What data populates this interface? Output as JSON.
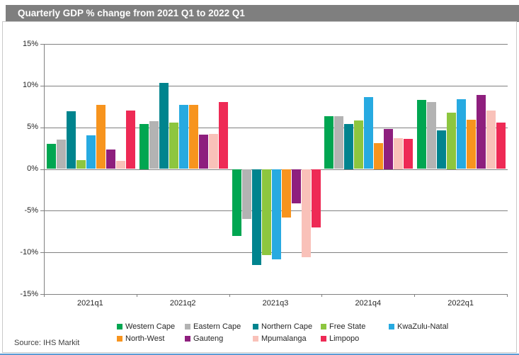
{
  "title": "Quarterly GDP % change from 2021 Q1 to 2022 Q1",
  "source_note": "Source: IHS Markit",
  "colors": {
    "title_bar_bg": "#7f7f7f",
    "title_text": "#ffffff",
    "grid_line": "#808080",
    "axis_line": "#808080",
    "frame_border": "#c9c9c9"
  },
  "chart_data": {
    "type": "bar",
    "title": "Quarterly GDP % change from 2021 Q1 to 2022 Q1",
    "categories": [
      "2021q1",
      "2021q2",
      "2021q3",
      "2021q4",
      "2022q1"
    ],
    "series": [
      {
        "name": "Western Cape",
        "color": "#00a651",
        "values": [
          3.0,
          5.4,
          -8.0,
          6.3,
          8.3
        ]
      },
      {
        "name": "Eastern Cape",
        "color": "#b3b3b3",
        "values": [
          3.5,
          5.7,
          -6.0,
          6.3,
          8.0
        ]
      },
      {
        "name": "Northern Cape",
        "color": "#00848e",
        "values": [
          6.9,
          10.3,
          -11.5,
          5.4,
          4.6
        ]
      },
      {
        "name": "Free State",
        "color": "#8dc63f",
        "values": [
          1.1,
          5.6,
          -10.3,
          5.8,
          6.8
        ]
      },
      {
        "name": "KwaZulu-Natal",
        "color": "#27aae1",
        "values": [
          4.0,
          7.7,
          -10.8,
          8.6,
          8.4
        ]
      },
      {
        "name": "North-West",
        "color": "#f7941e",
        "values": [
          7.7,
          7.7,
          -5.8,
          3.1,
          5.9
        ]
      },
      {
        "name": "Gauteng",
        "color": "#8e1f7e",
        "values": [
          2.3,
          4.1,
          -4.1,
          4.8,
          8.9
        ]
      },
      {
        "name": "Mpumalanga",
        "color": "#f9c1b9",
        "values": [
          1.0,
          4.2,
          -10.6,
          3.7,
          7.0
        ]
      },
      {
        "name": "Limpopo",
        "color": "#ee2a55",
        "values": [
          7.0,
          8.0,
          -7.0,
          3.6,
          5.6
        ]
      }
    ],
    "xlabel": "",
    "ylabel": "",
    "ylim": [
      -15,
      15
    ],
    "ytick_step": 5,
    "ytick_labels": [
      "15%",
      "10%",
      "5%",
      "0%",
      "-5%",
      "-10%",
      "-15%"
    ],
    "grid": true,
    "legend_position": "bottom"
  }
}
